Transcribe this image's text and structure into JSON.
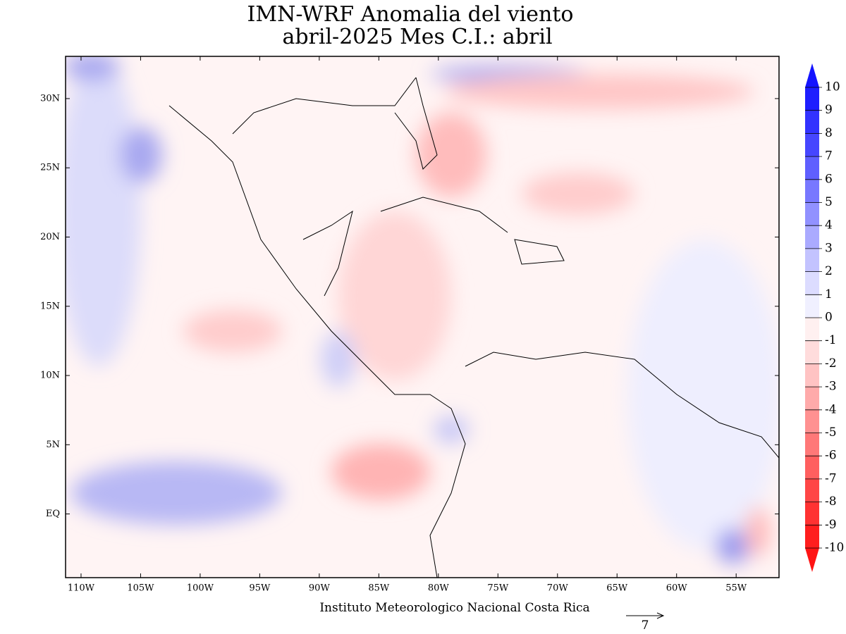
{
  "title": "IMN-WRF Anomalia del viento",
  "subtitle": "abril-2025 Mes C.I.: abril",
  "footer": "Instituto Meteorologico Nacional Costa Rica",
  "reference_vector_label": "7",
  "map": {
    "xlim": [
      -111.3,
      -51.4
    ],
    "ylim": [
      -4.6,
      33.05
    ],
    "xticks": [
      {
        "value": -110,
        "label": "110W"
      },
      {
        "value": -105,
        "label": "105W"
      },
      {
        "value": -100,
        "label": "100W"
      },
      {
        "value": -95,
        "label": "95W"
      },
      {
        "value": -90,
        "label": "90W"
      },
      {
        "value": -85,
        "label": "85W"
      },
      {
        "value": -80,
        "label": "80W"
      },
      {
        "value": -75,
        "label": "75W"
      },
      {
        "value": -70,
        "label": "70W"
      },
      {
        "value": -65,
        "label": "65W"
      },
      {
        "value": -60,
        "label": "60W"
      },
      {
        "value": -55,
        "label": "55W"
      }
    ],
    "yticks": [
      {
        "value": 0,
        "label": "EQ"
      },
      {
        "value": 5,
        "label": "5N"
      },
      {
        "value": 10,
        "label": "10N"
      },
      {
        "value": 15,
        "label": "15N"
      },
      {
        "value": 20,
        "label": "20N"
      },
      {
        "value": 25,
        "label": "25N"
      },
      {
        "value": 30,
        "label": "30N"
      }
    ]
  },
  "colorbar": {
    "levels": [
      10,
      9,
      8,
      7,
      6,
      5,
      4,
      3,
      2,
      1,
      0,
      -1,
      -2,
      -3,
      -4,
      -5,
      -6,
      -7,
      -8,
      -9,
      -10
    ],
    "colors": [
      "#1414ff",
      "#1e1eff",
      "#3232ff",
      "#4646ff",
      "#5f5fff",
      "#7878ff",
      "#9191ff",
      "#aaaaff",
      "#c3c3ff",
      "#dcdcff",
      "#f0f0ff",
      "#fff0f0",
      "#ffdcdc",
      "#ffc3c3",
      "#ffaaaa",
      "#ff9191",
      "#ff7878",
      "#ff5f5f",
      "#ff4646",
      "#ff3232",
      "#ff1e1e",
      "#ff1414"
    ]
  }
}
